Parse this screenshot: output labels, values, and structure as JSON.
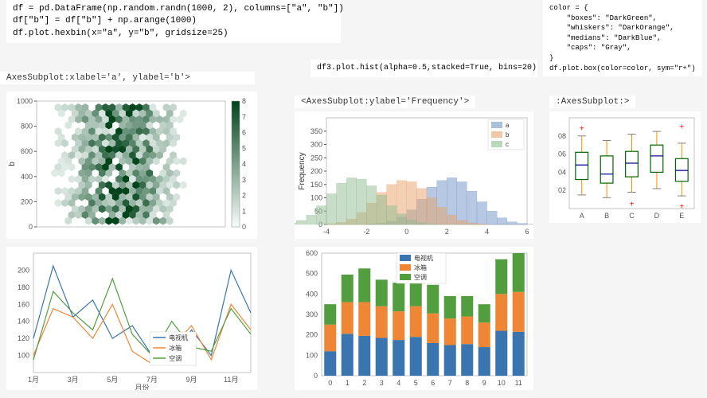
{
  "code_top_left": "df = pd.DataFrame(np.random.randn(1000, 2), columns=[\"a\", \"b\"])\ndf[\"b\"] = df[\"b\"] + np.arange(1000)\ndf.plot.hexbin(x=\"a\", y=\"b\", gridsize=25)",
  "code_top_right": "color = {\n    \"boxes\": \"DarkGreen\",\n    \"whiskers\": \"DarkOrange\",\n    \"medians\": \"DarkBlue\",\n    \"caps\": \"Gray\",\n}\ndf.plot.box(color=color, sym=\"r+\")",
  "code_mid": "df3.plot.hist(alpha=0.5,stacked=True, bins=20)",
  "label_hexbin": "AxesSubplot:xlabel='a', ylabel='b'>",
  "label_hist": "<AxesSubplot:ylabel='Frequency'>",
  "label_box": ":AxesSubplot:>",
  "hexbin": {
    "type": "hexbin",
    "xlim": [
      -3,
      3
    ],
    "ylim": [
      0,
      1000
    ],
    "yticks": [
      0,
      200,
      400,
      600,
      800,
      1000
    ],
    "ylabel": "b",
    "colorbar_ticks": [
      0,
      1,
      2,
      3,
      4,
      5,
      6,
      7,
      8
    ],
    "cmap_low": "#f7fcfb",
    "cmap_high": "#00441b",
    "background": "#ffffff",
    "ytick_fontsize": 9
  },
  "hist": {
    "type": "histogram",
    "stacked": true,
    "alpha": 0.5,
    "bins": 20,
    "ylabel": "Frequency",
    "xlim": [
      -4,
      6
    ],
    "xticks": [
      -4,
      -2,
      0,
      2,
      4,
      6
    ],
    "ylim": [
      0,
      400
    ],
    "yticks": [
      0,
      50,
      100,
      150,
      200,
      250,
      300,
      350
    ],
    "series": [
      {
        "name": "a",
        "color": "#6f94c5",
        "offset": 2,
        "values": [
          2,
          5,
          12,
          28,
          55,
          95,
          140,
          165,
          175,
          160,
          125,
          85,
          50,
          25,
          10,
          4,
          1,
          0,
          0,
          0
        ]
      },
      {
        "name": "b",
        "color": "#e8a26a",
        "offset": 0,
        "values": [
          3,
          8,
          20,
          45,
          80,
          120,
          150,
          165,
          160,
          135,
          100,
          65,
          35,
          15,
          6,
          2,
          0,
          0,
          0,
          0
        ]
      },
      {
        "name": "c",
        "color": "#8fbc8f",
        "offset": -2,
        "values": [
          5,
          15,
          35,
          70,
          115,
          155,
          175,
          170,
          145,
          110,
          70,
          40,
          18,
          7,
          2,
          0,
          0,
          0,
          0,
          0
        ]
      }
    ],
    "legend_labels": [
      "a",
      "b",
      "c"
    ],
    "legend_colors": [
      "#6f94c5",
      "#e8a26a",
      "#8fbc8f"
    ]
  },
  "boxplot": {
    "type": "boxplot",
    "categories": [
      "A",
      "B",
      "C",
      "D",
      "E"
    ],
    "ylim": [
      0,
      1.0
    ],
    "yticks": [
      0.2,
      0.4,
      0.6,
      0.8
    ],
    "ytick_labels": [
      "02",
      "04",
      "06",
      "08"
    ],
    "box_color": "#006400",
    "whisker_color": "#ff8c00",
    "median_color": "#00008b",
    "cap_color": "#808080",
    "outlier_sym": "r+",
    "outlier_color": "#ff0000",
    "boxes": [
      {
        "q1": 0.32,
        "median": 0.48,
        "q3": 0.62,
        "low": 0.15,
        "high": 0.8,
        "outliers": [
          0.88
        ]
      },
      {
        "q1": 0.28,
        "median": 0.38,
        "q3": 0.58,
        "low": 0.12,
        "high": 0.75,
        "outliers": []
      },
      {
        "q1": 0.35,
        "median": 0.5,
        "q3": 0.63,
        "low": 0.18,
        "high": 0.82,
        "outliers": [
          0.05
        ]
      },
      {
        "q1": 0.4,
        "median": 0.58,
        "q3": 0.7,
        "low": 0.22,
        "high": 0.85,
        "outliers": []
      },
      {
        "q1": 0.3,
        "median": 0.42,
        "q3": 0.55,
        "low": 0.14,
        "high": 0.72,
        "outliers": [
          0.9,
          0.02
        ]
      }
    ]
  },
  "line_chart": {
    "type": "line",
    "xlabel": "月份",
    "xticks": [
      "1月",
      "3月",
      "5月",
      "7月",
      "9月",
      "11月"
    ],
    "xtick_idx": [
      0,
      2,
      4,
      6,
      8,
      10
    ],
    "ylim": [
      80,
      220
    ],
    "yticks": [
      100,
      120,
      140,
      160,
      180,
      200
    ],
    "series": [
      {
        "name": "电视机",
        "color": "#3b75af",
        "values": [
          120,
          205,
          145,
          165,
          120,
          135,
          100,
          95,
          130,
          100,
          200,
          150
        ]
      },
      {
        "name": "冰箱",
        "color": "#ef8636",
        "values": [
          100,
          155,
          145,
          120,
          160,
          105,
          90,
          110,
          135,
          95,
          160,
          130
        ]
      },
      {
        "name": "空调",
        "color": "#529e3f",
        "values": [
          95,
          175,
          150,
          130,
          190,
          125,
          100,
          140,
          110,
          105,
          155,
          125
        ]
      }
    ],
    "legend_labels": [
      "电视机",
      "冰箱",
      "空调"
    ]
  },
  "stacked_bar": {
    "type": "stacked_bar",
    "xticks": [
      0,
      1,
      2,
      3,
      4,
      5,
      6,
      7,
      8,
      9,
      10,
      11
    ],
    "ylim": [
      0,
      600
    ],
    "yticks": [
      0,
      100,
      200,
      300,
      400,
      500,
      600
    ],
    "series": [
      {
        "name": "电视机",
        "color": "#3b75af",
        "values": [
          120,
          205,
          195,
          185,
          175,
          190,
          160,
          150,
          155,
          140,
          220,
          215
        ]
      },
      {
        "name": "冰箱",
        "color": "#ef8636",
        "values": [
          130,
          155,
          165,
          155,
          140,
          150,
          145,
          130,
          135,
          120,
          180,
          195
        ]
      },
      {
        "name": "空调",
        "color": "#529e3f",
        "values": [
          100,
          135,
          165,
          130,
          140,
          125,
          140,
          110,
          100,
          90,
          170,
          190
        ]
      }
    ],
    "legend_labels": [
      "电视机",
      "冰箱",
      "空调"
    ]
  }
}
